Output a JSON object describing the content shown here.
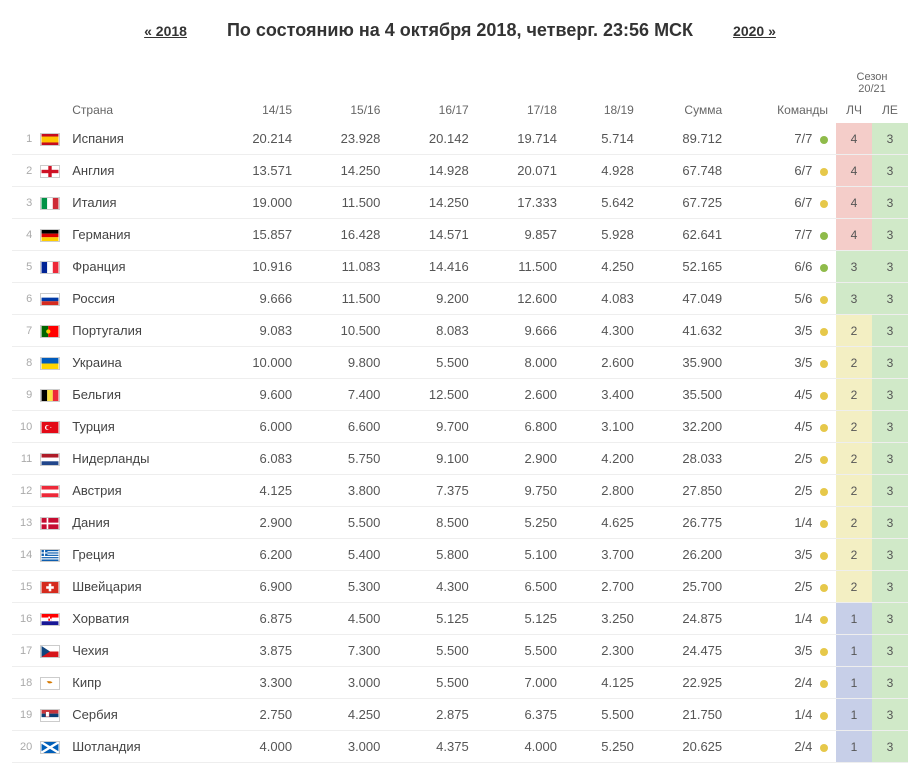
{
  "nav": {
    "prev": "« 2018",
    "next": "2020 »"
  },
  "title": "По состоянию на 4 октября 2018, четверг. 23:56 МСК",
  "columns": {
    "country": "Страна",
    "s1415": "14/15",
    "s1516": "15/16",
    "s1617": "16/17",
    "s1718": "17/18",
    "s1819": "18/19",
    "sum": "Сумма",
    "teams": "Команды",
    "season": "Сезон 20/21",
    "lch": "ЛЧ",
    "le": "ЛЕ"
  },
  "rows": [
    {
      "rank": "1",
      "flag": "es",
      "country": "Испания",
      "v": [
        "20.214",
        "23.928",
        "20.142",
        "19.714",
        "5.714"
      ],
      "sum": "89.712",
      "teams": "7/7",
      "dot": "green",
      "lch": "4",
      "lchC": "red",
      "le": "3",
      "leC": "green"
    },
    {
      "rank": "2",
      "flag": "en",
      "country": "Англия",
      "v": [
        "13.571",
        "14.250",
        "14.928",
        "20.071",
        "4.928"
      ],
      "sum": "67.748",
      "teams": "6/7",
      "dot": "yellow",
      "lch": "4",
      "lchC": "red",
      "le": "3",
      "leC": "green"
    },
    {
      "rank": "3",
      "flag": "it",
      "country": "Италия",
      "v": [
        "19.000",
        "11.500",
        "14.250",
        "17.333",
        "5.642"
      ],
      "sum": "67.725",
      "teams": "6/7",
      "dot": "yellow",
      "lch": "4",
      "lchC": "red",
      "le": "3",
      "leC": "green"
    },
    {
      "rank": "4",
      "flag": "de",
      "country": "Германия",
      "v": [
        "15.857",
        "16.428",
        "14.571",
        "9.857",
        "5.928"
      ],
      "sum": "62.641",
      "teams": "7/7",
      "dot": "green",
      "lch": "4",
      "lchC": "red",
      "le": "3",
      "leC": "green"
    },
    {
      "rank": "5",
      "flag": "fr",
      "country": "Франция",
      "v": [
        "10.916",
        "11.083",
        "14.416",
        "11.500",
        "4.250"
      ],
      "sum": "52.165",
      "teams": "6/6",
      "dot": "green",
      "lch": "3",
      "lchC": "green",
      "le": "3",
      "leC": "green"
    },
    {
      "rank": "6",
      "flag": "ru",
      "country": "Россия",
      "v": [
        "9.666",
        "11.500",
        "9.200",
        "12.600",
        "4.083"
      ],
      "sum": "47.049",
      "teams": "5/6",
      "dot": "yellow",
      "lch": "3",
      "lchC": "green",
      "le": "3",
      "leC": "green"
    },
    {
      "rank": "7",
      "flag": "pt",
      "country": "Португалия",
      "v": [
        "9.083",
        "10.500",
        "8.083",
        "9.666",
        "4.300"
      ],
      "sum": "41.632",
      "teams": "3/5",
      "dot": "yellow",
      "lch": "2",
      "lchC": "yellow",
      "le": "3",
      "leC": "green"
    },
    {
      "rank": "8",
      "flag": "ua",
      "country": "Украина",
      "v": [
        "10.000",
        "9.800",
        "5.500",
        "8.000",
        "2.600"
      ],
      "sum": "35.900",
      "teams": "3/5",
      "dot": "yellow",
      "lch": "2",
      "lchC": "yellow",
      "le": "3",
      "leC": "green"
    },
    {
      "rank": "9",
      "flag": "be",
      "country": "Бельгия",
      "v": [
        "9.600",
        "7.400",
        "12.500",
        "2.600",
        "3.400"
      ],
      "sum": "35.500",
      "teams": "4/5",
      "dot": "yellow",
      "lch": "2",
      "lchC": "yellow",
      "le": "3",
      "leC": "green"
    },
    {
      "rank": "10",
      "flag": "tr",
      "country": "Турция",
      "v": [
        "6.000",
        "6.600",
        "9.700",
        "6.800",
        "3.100"
      ],
      "sum": "32.200",
      "teams": "4/5",
      "dot": "yellow",
      "lch": "2",
      "lchC": "yellow",
      "le": "3",
      "leC": "green"
    },
    {
      "rank": "11",
      "flag": "nl",
      "country": "Нидерланды",
      "v": [
        "6.083",
        "5.750",
        "9.100",
        "2.900",
        "4.200"
      ],
      "sum": "28.033",
      "teams": "2/5",
      "dot": "yellow",
      "lch": "2",
      "lchC": "yellow",
      "le": "3",
      "leC": "green"
    },
    {
      "rank": "12",
      "flag": "at",
      "country": "Австрия",
      "v": [
        "4.125",
        "3.800",
        "7.375",
        "9.750",
        "2.800"
      ],
      "sum": "27.850",
      "teams": "2/5",
      "dot": "yellow",
      "lch": "2",
      "lchC": "yellow",
      "le": "3",
      "leC": "green"
    },
    {
      "rank": "13",
      "flag": "dk",
      "country": "Дания",
      "v": [
        "2.900",
        "5.500",
        "8.500",
        "5.250",
        "4.625"
      ],
      "sum": "26.775",
      "teams": "1/4",
      "dot": "yellow",
      "lch": "2",
      "lchC": "yellow",
      "le": "3",
      "leC": "green"
    },
    {
      "rank": "14",
      "flag": "gr",
      "country": "Греция",
      "v": [
        "6.200",
        "5.400",
        "5.800",
        "5.100",
        "3.700"
      ],
      "sum": "26.200",
      "teams": "3/5",
      "dot": "yellow",
      "lch": "2",
      "lchC": "yellow",
      "le": "3",
      "leC": "green"
    },
    {
      "rank": "15",
      "flag": "ch",
      "country": "Швейцария",
      "v": [
        "6.900",
        "5.300",
        "4.300",
        "6.500",
        "2.700"
      ],
      "sum": "25.700",
      "teams": "2/5",
      "dot": "yellow",
      "lch": "2",
      "lchC": "yellow",
      "le": "3",
      "leC": "green"
    },
    {
      "rank": "16",
      "flag": "hr",
      "country": "Хорватия",
      "v": [
        "6.875",
        "4.500",
        "5.125",
        "5.125",
        "3.250"
      ],
      "sum": "24.875",
      "teams": "1/4",
      "dot": "yellow",
      "lch": "1",
      "lchC": "blue",
      "le": "3",
      "leC": "green"
    },
    {
      "rank": "17",
      "flag": "cz",
      "country": "Чехия",
      "v": [
        "3.875",
        "7.300",
        "5.500",
        "5.500",
        "2.300"
      ],
      "sum": "24.475",
      "teams": "3/5",
      "dot": "yellow",
      "lch": "1",
      "lchC": "blue",
      "le": "3",
      "leC": "green"
    },
    {
      "rank": "18",
      "flag": "cy",
      "country": "Кипр",
      "v": [
        "3.300",
        "3.000",
        "5.500",
        "7.000",
        "4.125"
      ],
      "sum": "22.925",
      "teams": "2/4",
      "dot": "yellow",
      "lch": "1",
      "lchC": "blue",
      "le": "3",
      "leC": "green"
    },
    {
      "rank": "19",
      "flag": "rs",
      "country": "Сербия",
      "v": [
        "2.750",
        "4.250",
        "2.875",
        "6.375",
        "5.500"
      ],
      "sum": "21.750",
      "teams": "1/4",
      "dot": "yellow",
      "lch": "1",
      "lchC": "blue",
      "le": "3",
      "leC": "green"
    },
    {
      "rank": "20",
      "flag": "sc",
      "country": "Шотландия",
      "v": [
        "4.000",
        "3.000",
        "4.375",
        "4.000",
        "5.250"
      ],
      "sum": "20.625",
      "teams": "2/4",
      "dot": "yellow",
      "lch": "1",
      "lchC": "blue",
      "le": "3",
      "leC": "green"
    }
  ]
}
